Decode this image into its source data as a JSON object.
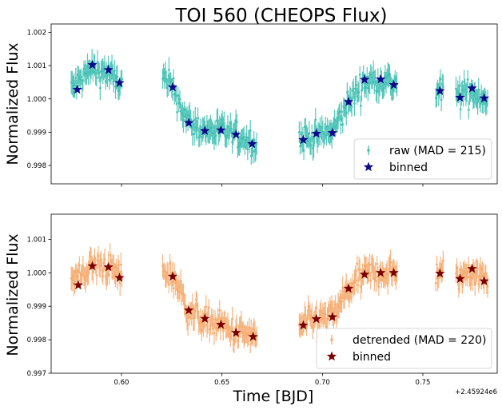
{
  "chart_data": [
    {
      "type": "scatter",
      "title": "TOI 560 (CHEOPS Flux)",
      "xlabel": "",
      "ylabel": "Normalized Flux",
      "xlim": [
        0.565,
        0.787
      ],
      "ylim": [
        0.99745,
        1.00225
      ],
      "yticks": [
        0.998,
        0.999,
        1.0,
        1.001,
        1.002
      ],
      "ytick_labels": [
        "0.998",
        "0.999",
        "1.000",
        "1.001",
        "1.002"
      ],
      "xticks": [
        0.6,
        0.65,
        0.7,
        0.75
      ],
      "raw_color": "#45c1b4",
      "binned_color": "#0a0a8a",
      "segments": [
        {
          "start": 0.575,
          "end": 0.6005,
          "knots": [
            [
              0.575,
              1.0003
            ],
            [
              0.585,
              1.0009
            ],
            [
              0.592,
              1.0008
            ],
            [
              0.6005,
              1.0004
            ]
          ]
        },
        {
          "start": 0.6205,
          "end": 0.6675,
          "knots": [
            [
              0.6205,
              1.0006
            ],
            [
              0.626,
              1.0003
            ],
            [
              0.633,
              0.9993
            ],
            [
              0.641,
              0.99905
            ],
            [
              0.649,
              0.99905
            ],
            [
              0.657,
              0.9989
            ],
            [
              0.6675,
              0.99865
            ]
          ]
        },
        {
          "start": 0.6885,
          "end": 0.7375,
          "knots": [
            [
              0.6885,
              0.9988
            ],
            [
              0.697,
              0.9989
            ],
            [
              0.705,
              0.999
            ],
            [
              0.713,
              0.9999
            ],
            [
              0.721,
              1.0005
            ],
            [
              0.729,
              1.0006
            ],
            [
              0.7375,
              1.0004
            ]
          ]
        },
        {
          "start": 0.7565,
          "end": 0.7605,
          "knots": [
            [
              0.7565,
              1.0002
            ],
            [
              0.7605,
              1.0002
            ]
          ]
        },
        {
          "start": 0.7665,
          "end": 0.7825,
          "knots": [
            [
              0.7665,
              1.0001
            ],
            [
              0.7745,
              1.0002
            ],
            [
              0.7825,
              1.0
            ]
          ]
        }
      ],
      "binned": {
        "x": [
          0.578,
          0.5855,
          0.5935,
          0.599,
          0.6255,
          0.6335,
          0.6415,
          0.6495,
          0.657,
          0.665,
          0.6905,
          0.697,
          0.705,
          0.713,
          0.721,
          0.729,
          0.7355,
          0.7585,
          0.7685,
          0.7745,
          0.7805
        ],
        "y": [
          1.00028,
          1.00102,
          1.00087,
          1.00048,
          1.00035,
          0.99928,
          0.99904,
          0.99906,
          0.99893,
          0.99865,
          0.99877,
          0.99896,
          0.99898,
          0.99991,
          1.00058,
          1.00059,
          1.00042,
          1.00024,
          1.00004,
          1.00032,
          1.00002
        ]
      },
      "legend": {
        "position": "lower-right",
        "entries": [
          "raw (MAD = 215)",
          "binned"
        ]
      }
    },
    {
      "type": "scatter",
      "title": "",
      "xlabel": "Time [BJD]",
      "ylabel": "Normalized Flux",
      "xlim": [
        0.565,
        0.787
      ],
      "ylim": [
        0.997,
        1.00175
      ],
      "yticks": [
        0.997,
        0.998,
        0.999,
        1.0,
        1.001
      ],
      "ytick_labels": [
        "0.997",
        "0.998",
        "0.999",
        "1.000",
        "1.001"
      ],
      "xticks": [
        0.6,
        0.65,
        0.7,
        0.75
      ],
      "xtick_labels": [
        "0.60",
        "0.65",
        "0.70",
        "0.75"
      ],
      "x_offset_label": "+2.45924e6",
      "raw_color": "#f5ad72",
      "binned_color": "#7a0000",
      "segments": [
        {
          "start": 0.575,
          "end": 0.6005,
          "knots": [
            [
              0.575,
              0.9997
            ],
            [
              0.585,
              1.0002
            ],
            [
              0.592,
              1.0002
            ],
            [
              0.6005,
              0.9999
            ]
          ]
        },
        {
          "start": 0.6205,
          "end": 0.6675,
          "knots": [
            [
              0.6205,
              1.0
            ],
            [
              0.626,
              0.9999
            ],
            [
              0.633,
              0.9989
            ],
            [
              0.641,
              0.9986
            ],
            [
              0.649,
              0.99845
            ],
            [
              0.657,
              0.9982
            ],
            [
              0.6675,
              0.9981
            ]
          ]
        },
        {
          "start": 0.6885,
          "end": 0.7375,
          "knots": [
            [
              0.6885,
              0.9984
            ],
            [
              0.697,
              0.9986
            ],
            [
              0.705,
              0.9987
            ],
            [
              0.713,
              0.9995
            ],
            [
              0.721,
              0.99995
            ],
            [
              0.729,
              1.0
            ],
            [
              0.7375,
              1.0
            ]
          ]
        },
        {
          "start": 0.7565,
          "end": 0.7605,
          "knots": [
            [
              0.7565,
              1.0
            ],
            [
              0.7605,
              1.0
            ]
          ]
        },
        {
          "start": 0.7665,
          "end": 0.7825,
          "knots": [
            [
              0.7665,
              0.9998
            ],
            [
              0.7745,
              1.0001
            ],
            [
              0.7825,
              0.99975
            ]
          ]
        }
      ],
      "binned": {
        "x": [
          0.5785,
          0.5855,
          0.5935,
          0.599,
          0.6255,
          0.6335,
          0.6415,
          0.6495,
          0.657,
          0.6655,
          0.6905,
          0.697,
          0.705,
          0.713,
          0.721,
          0.729,
          0.7355,
          0.7585,
          0.7685,
          0.7745,
          0.7805
        ],
        "y": [
          0.99963,
          1.0002,
          1.00017,
          0.99985,
          0.99989,
          0.99888,
          0.99863,
          0.99845,
          0.99821,
          0.99809,
          0.99843,
          0.99862,
          0.99868,
          0.99953,
          0.99995,
          1.0,
          1.0,
          0.99998,
          0.99982,
          1.00012,
          0.99975
        ]
      },
      "legend": {
        "position": "lower-right",
        "entries": [
          "detrended (MAD = 220)",
          "binned"
        ]
      }
    }
  ]
}
